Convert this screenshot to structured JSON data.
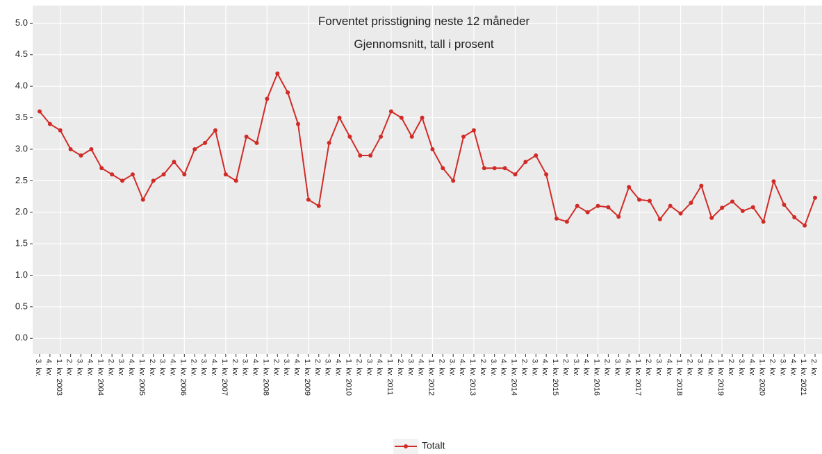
{
  "chart_data": {
    "type": "line",
    "title": "Forventet prisstigning neste 12 måneder",
    "subtitle": "Gjennomsnitt, tall i prosent",
    "categories": [
      "3. kv.",
      "4. kv.",
      "1. kv. 2003",
      "2. kv.",
      "3. kv.",
      "4. kv.",
      "1. kv. 2004",
      "2. kv.",
      "3. kv.",
      "4. kv.",
      "1. kv. 2005",
      "2. kv.",
      "3. kv.",
      "4. kv.",
      "1. kv. 2006",
      "2. kv.",
      "3. kv.",
      "4. kv.",
      "1. kv. 2007",
      "2. kv.",
      "3. kv.",
      "4. kv.",
      "1. kv. 2008",
      "2. kv.",
      "3. kv.",
      "4. kv.",
      "1. kv. 2009",
      "2. kv.",
      "3. kv.",
      "4. kv.",
      "1. kv. 2010",
      "2. kv.",
      "3. kv.",
      "4. kv.",
      "1. kv. 2011",
      "2. kv.",
      "3. kv.",
      "4. kv.",
      "1. kv. 2012",
      "2. kv.",
      "3. kv.",
      "4. kv.",
      "1. kv. 2013",
      "2. kv.",
      "3. kv.",
      "4. kv.",
      "1. kv. 2014",
      "2. kv.",
      "3. kv.",
      "4. kv.",
      "1. kv. 2015",
      "2. kv.",
      "3. kv.",
      "4. kv.",
      "1. kv. 2016",
      "2. kv.",
      "3. kv.",
      "4. kv.",
      "1. kv. 2017",
      "2. kv.",
      "3. kv.",
      "4. kv.",
      "1. kv. 2018",
      "2. kv.",
      "3. kv.",
      "4. kv.",
      "1. kv. 2019",
      "2. kv.",
      "3. kv.",
      "4. kv.",
      "1. kv. 2020",
      "2. kv.",
      "3. kv.",
      "4. kv.",
      "1. kv. 2021",
      "2. kv."
    ],
    "series": [
      {
        "name": "Totalt",
        "color": "#d02b27",
        "values": [
          3.6,
          3.4,
          3.3,
          3.0,
          2.9,
          3.0,
          2.7,
          2.6,
          2.5,
          2.6,
          2.2,
          2.5,
          2.6,
          2.8,
          2.6,
          3.0,
          3.1,
          3.3,
          2.6,
          2.5,
          3.2,
          3.1,
          3.8,
          4.2,
          3.9,
          3.4,
          2.2,
          2.1,
          3.1,
          3.5,
          3.2,
          2.9,
          2.9,
          3.2,
          3.6,
          3.5,
          3.2,
          3.5,
          3.0,
          2.7,
          2.5,
          3.2,
          3.3,
          2.7,
          2.7,
          2.7,
          2.6,
          2.8,
          2.9,
          2.6,
          1.9,
          1.85,
          2.1,
          2.0,
          2.1,
          2.08,
          1.93,
          2.4,
          2.2,
          2.18,
          1.89,
          2.1,
          1.98,
          2.15,
          2.42,
          1.91,
          2.07,
          2.17,
          2.02,
          2.08,
          1.85,
          2.49,
          2.12,
          1.92,
          1.79,
          2.23
        ]
      }
    ],
    "ylim": [
      -0.25,
      5.28
    ],
    "yticks": [
      {
        "value": 0,
        "label": "0.0"
      },
      0.5,
      {
        "value": 1,
        "label": "1.0"
      },
      1.5,
      {
        "value": 2,
        "label": "2.0"
      },
      2.5,
      {
        "value": 3,
        "label": "3.0"
      },
      3.5,
      {
        "value": 4,
        "label": "4.0"
      },
      4.5,
      {
        "value": 5,
        "label": "5.0"
      }
    ],
    "grid": true,
    "legend": "bottom"
  }
}
